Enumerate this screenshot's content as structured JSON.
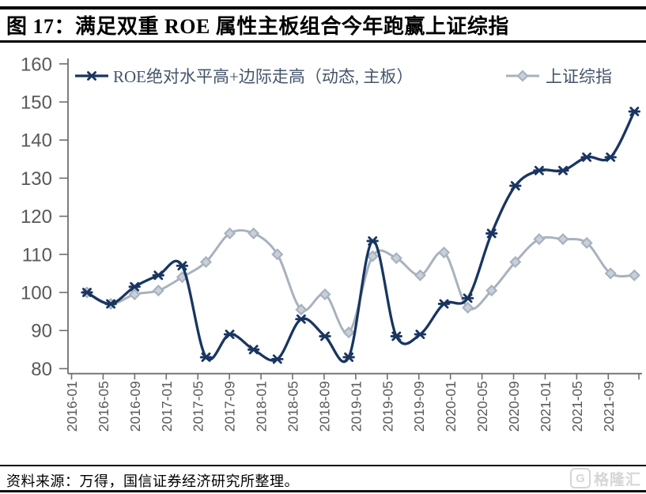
{
  "footer": {
    "source": "资料来源：万得，国信证券经济研究所整理。",
    "watermark_logo_letter": "G",
    "watermark_text": "格隆汇"
  },
  "colors": {
    "navy": "#193561",
    "gray_line": "#a8b2be",
    "gray_marker_fill": "#c9d0da",
    "axis": "#6f6f6f",
    "tick_text": "#595959",
    "legend_text": "#44546a",
    "rule": "#000000"
  },
  "chart_data": {
    "type": "line",
    "title": "图 17：满足双重 ROE 属性主板组合今年跑赢上证综指",
    "x": [
      "2016-03",
      "2016-06",
      "2016-09",
      "2016-12",
      "2017-03",
      "2017-06",
      "2017-09",
      "2017-12",
      "2018-03",
      "2018-06",
      "2018-09",
      "2018-12",
      "2019-03",
      "2019-06",
      "2019-09",
      "2019-12",
      "2020-03",
      "2020-06",
      "2020-09",
      "2020-12",
      "2021-03",
      "2021-06",
      "2021-09",
      "2021-12"
    ],
    "x_tick_labels": [
      "2016-01",
      "2016-05",
      "2016-09",
      "2017-01",
      "2017-05",
      "2017-09",
      "2018-01",
      "2018-05",
      "2018-09",
      "2019-01",
      "2019-05",
      "2019-09",
      "2020-01",
      "2020-05",
      "2020-09",
      "2021-01",
      "2021-05",
      "2021-09"
    ],
    "ylim": [
      78.5,
      160
    ],
    "yticks": [
      80,
      90,
      100,
      110,
      120,
      130,
      140,
      150,
      160
    ],
    "grid": false,
    "legend_position": "top",
    "series": [
      {
        "name": "ROE绝对水平高+边际走高（动态, 主板）",
        "marker": "asterisk",
        "values": [
          100,
          97,
          101.5,
          104.5,
          107,
          83,
          89,
          85,
          82.5,
          93,
          88.5,
          83,
          113.5,
          88.5,
          89,
          97,
          98.5,
          115.5,
          128,
          132,
          132,
          135.5,
          135.5,
          147.5
        ]
      },
      {
        "name": "上证综指",
        "marker": "diamond",
        "values": [
          100,
          97,
          99.5,
          100.5,
          104,
          108,
          115.5,
          115.5,
          110,
          95.5,
          99.5,
          89.5,
          109.5,
          109,
          104.5,
          110.5,
          96,
          100.5,
          108,
          114,
          114,
          113,
          105,
          104.5
        ]
      }
    ]
  }
}
